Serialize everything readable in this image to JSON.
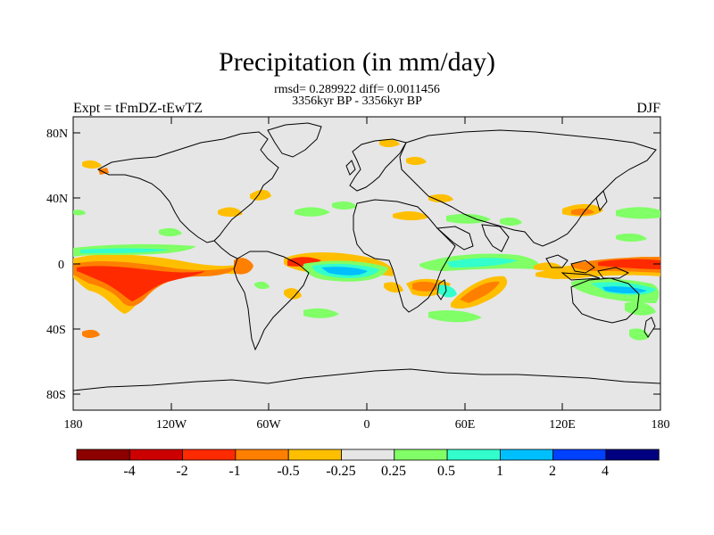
{
  "title": "Precipitation (in mm/day)",
  "stats": "rmsd= 0.289922 diff= 0.0011456",
  "period": "3356kyr BP - 3356kyr BP",
  "left_label": "Expt = tFmDZ-tEwTZ",
  "right_label": "DJF",
  "colors": {
    "ocean_land_bg": "#e6e6e6",
    "coast": "#000000"
  },
  "lat_ticks": [
    "80N",
    "40N",
    "0",
    "40S",
    "80S"
  ],
  "lon_ticks": [
    "180",
    "120W",
    "60W",
    "0",
    "60E",
    "120E",
    "180"
  ],
  "colorbar": {
    "colors": [
      "#8c0000",
      "#cc0000",
      "#ff2a00",
      "#ff7f00",
      "#ffbf00",
      "#e6e6e6",
      "#80ff66",
      "#33ffcc",
      "#00bfff",
      "#0040ff",
      "#000080"
    ],
    "labels": [
      "-4",
      "-2",
      "-1",
      "-0.5",
      "-0.25",
      "0.25",
      "0.5",
      "1",
      "2",
      "4"
    ]
  }
}
